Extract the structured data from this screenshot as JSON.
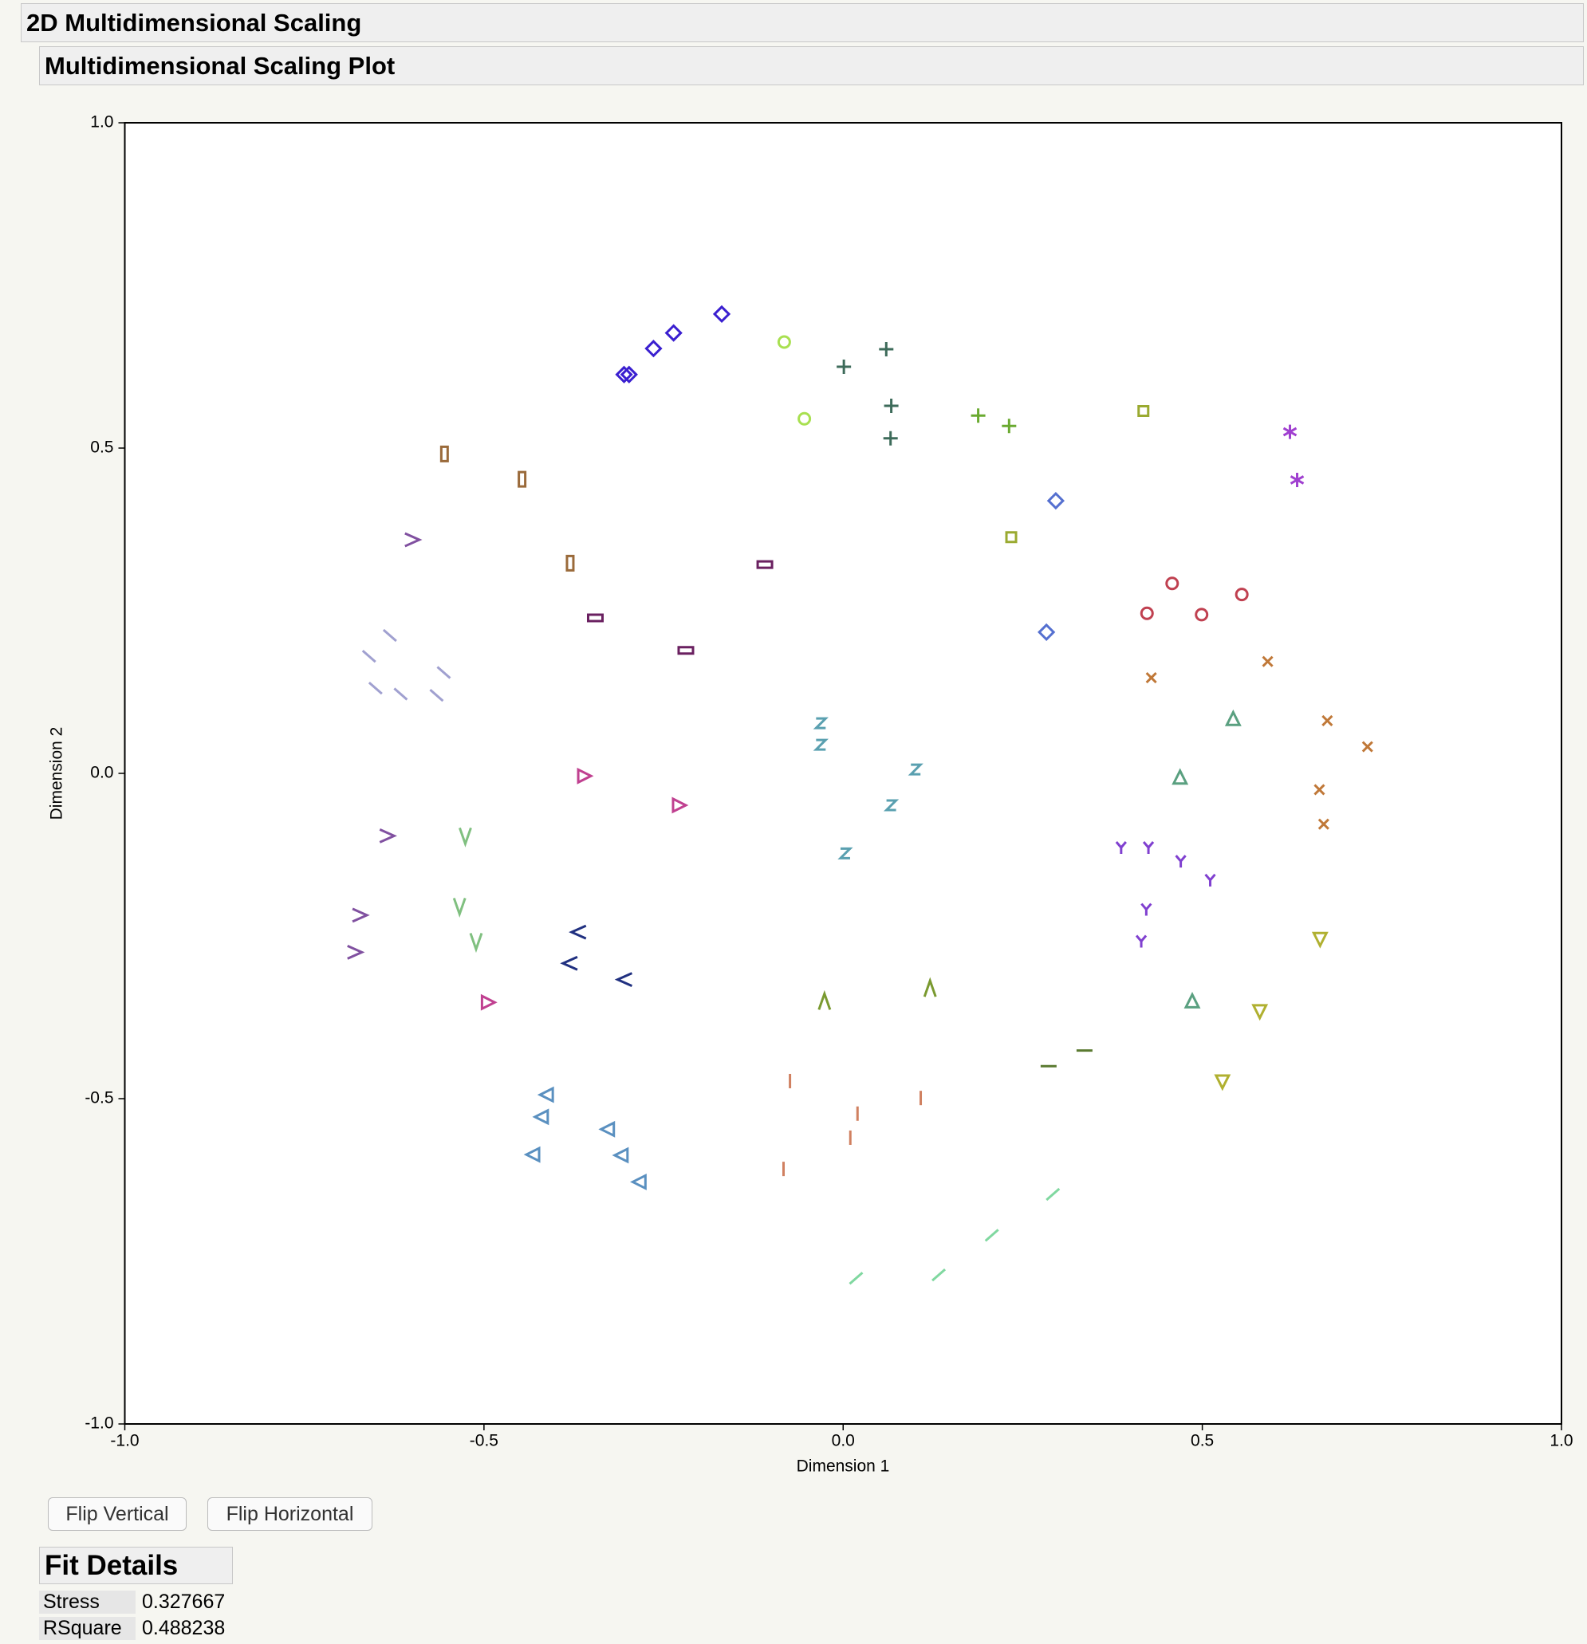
{
  "header": {
    "title": "2D Multidimensional Scaling",
    "subtitle": "Multidimensional Scaling Plot"
  },
  "chart_data": {
    "type": "scatter",
    "xlabel": "Dimension 1",
    "ylabel": "Dimension 2",
    "xlim": [
      -1,
      1
    ],
    "ylim": [
      -1,
      1
    ],
    "xticks": [
      {
        "value": -1,
        "label": "-1.0"
      },
      {
        "value": -0.5,
        "label": "-0.5"
      },
      {
        "value": 0,
        "label": "0.0"
      },
      {
        "value": 0.5,
        "label": "0.5"
      },
      {
        "value": 1,
        "label": "1.0"
      }
    ],
    "yticks": [
      {
        "value": -1,
        "label": "-1.0"
      },
      {
        "value": -0.5,
        "label": "-0.5"
      },
      {
        "value": 0,
        "label": "0.0"
      },
      {
        "value": 0.5,
        "label": "0.5"
      },
      {
        "value": 1,
        "label": "1.0"
      }
    ],
    "series": [
      {
        "marker": "diamond",
        "color": "#3a1fd0",
        "x": [
          -0.305,
          -0.298,
          -0.264,
          -0.236,
          -0.169
        ],
        "y": [
          0.613,
          0.613,
          0.653,
          0.677,
          0.706
        ]
      },
      {
        "marker": "diamond",
        "color": "#5570d0",
        "x": [
          0.296,
          0.283
        ],
        "y": [
          0.419,
          0.217
        ]
      },
      {
        "marker": "circle",
        "color": "#a8e050",
        "x": [
          -0.082,
          -0.054
        ],
        "y": [
          0.663,
          0.545
        ]
      },
      {
        "marker": "plus",
        "color": "#3d6b5a",
        "x": [
          0.001,
          0.06,
          0.067,
          0.066
        ],
        "y": [
          0.625,
          0.652,
          0.565,
          0.515
        ]
      },
      {
        "marker": "plus",
        "color": "#6aaa30",
        "x": [
          0.188,
          0.231
        ],
        "y": [
          0.55,
          0.534
        ]
      },
      {
        "marker": "square",
        "color": "#9aaa30",
        "x": [
          0.418,
          0.234
        ],
        "y": [
          0.557,
          0.363
        ]
      },
      {
        "marker": "asterisk",
        "color": "#a040d0",
        "x": [
          0.622,
          0.632
        ],
        "y": [
          0.525,
          0.451
        ]
      },
      {
        "marker": "rect-tall",
        "color": "#9a6a3a",
        "x": [
          -0.555,
          -0.447,
          -0.38
        ],
        "y": [
          0.491,
          0.452,
          0.323
        ]
      },
      {
        "marker": "rect-wide",
        "color": "#6a2060",
        "x": [
          -0.109,
          -0.345,
          -0.219
        ],
        "y": [
          0.321,
          0.239,
          0.189
        ]
      },
      {
        "marker": "circle",
        "color": "#c04050",
        "x": [
          0.458,
          0.423,
          0.499,
          0.555
        ],
        "y": [
          0.292,
          0.246,
          0.244,
          0.275
        ]
      },
      {
        "marker": "x",
        "color": "#c07838",
        "x": [
          0.591,
          0.429,
          0.674,
          0.73,
          0.663,
          0.669
        ],
        "y": [
          0.172,
          0.147,
          0.081,
          0.041,
          -0.025,
          -0.078
        ]
      },
      {
        "marker": "tri-up",
        "color": "#5aa080",
        "x": [
          0.543,
          0.469,
          0.486
        ],
        "y": [
          0.083,
          -0.007,
          -0.351
        ]
      },
      {
        "marker": "y",
        "color": "#8040d0",
        "x": [
          0.387,
          0.425,
          0.47,
          0.511,
          0.422,
          0.415
        ],
        "y": [
          -0.114,
          -0.114,
          -0.135,
          -0.164,
          -0.209,
          -0.258
        ]
      },
      {
        "marker": "tri-down",
        "color": "#b0b030",
        "x": [
          0.664,
          0.58,
          0.528
        ],
        "y": [
          -0.254,
          -0.365,
          -0.473
        ]
      },
      {
        "marker": "z",
        "color": "#5aa0b0",
        "x": [
          -0.031,
          -0.031,
          0.101,
          0.067,
          0.003
        ],
        "y": [
          0.077,
          0.044,
          0.006,
          -0.049,
          -0.123
        ]
      },
      {
        "marker": "gt",
        "color": "#8050a0",
        "x": [
          -0.6,
          -0.635,
          -0.673,
          -0.68
        ],
        "y": [
          0.359,
          -0.096,
          -0.218,
          -0.275
        ]
      },
      {
        "marker": "backslash",
        "color": "#a0a0d0",
        "x": [
          -0.66,
          -0.631,
          -0.651,
          -0.616,
          -0.566,
          -0.556
        ],
        "y": [
          0.18,
          0.212,
          0.131,
          0.122,
          0.12,
          0.155
        ]
      },
      {
        "marker": "tri-right",
        "color": "#c04090",
        "x": [
          -0.361,
          -0.229,
          -0.495
        ],
        "y": [
          -0.004,
          -0.049,
          -0.352
        ]
      },
      {
        "marker": "v",
        "color": "#80c080",
        "x": [
          -0.526,
          -0.534,
          -0.511
        ],
        "y": [
          -0.096,
          -0.204,
          -0.258
        ]
      },
      {
        "marker": "lt",
        "color": "#203080",
        "x": [
          -0.368,
          -0.38,
          -0.304
        ],
        "y": [
          -0.244,
          -0.292,
          -0.317
        ]
      },
      {
        "marker": "caret",
        "color": "#7a9a30",
        "x": [
          -0.026,
          0.121
        ],
        "y": [
          -0.351,
          -0.331
        ]
      },
      {
        "marker": "tri-left",
        "color": "#5a90c0",
        "x": [
          -0.412,
          -0.419,
          -0.431,
          -0.327,
          -0.308,
          -0.283
        ],
        "y": [
          -0.494,
          -0.528,
          -0.586,
          -0.547,
          -0.587,
          -0.628
        ]
      },
      {
        "marker": "bar",
        "color": "#d08060",
        "x": [
          -0.074,
          0.02,
          0.108,
          0.01,
          -0.083
        ],
        "y": [
          -0.473,
          -0.523,
          -0.499,
          -0.56,
          -0.608
        ]
      },
      {
        "marker": "dash",
        "color": "#5a7a30",
        "x": [
          0.286,
          0.336
        ],
        "y": [
          -0.45,
          -0.426
        ]
      },
      {
        "marker": "slash",
        "color": "#80d8a0",
        "x": [
          0.292,
          0.207,
          0.133,
          0.018
        ],
        "y": [
          -0.647,
          -0.71,
          -0.771,
          -0.776
        ]
      }
    ]
  },
  "buttons": [
    "Flip Vertical",
    "Flip Horizontal"
  ],
  "fit_details": {
    "title": "Fit Details",
    "rows": [
      [
        "Stress",
        0.327667
      ],
      [
        "RSquare",
        0.488238
      ]
    ]
  }
}
